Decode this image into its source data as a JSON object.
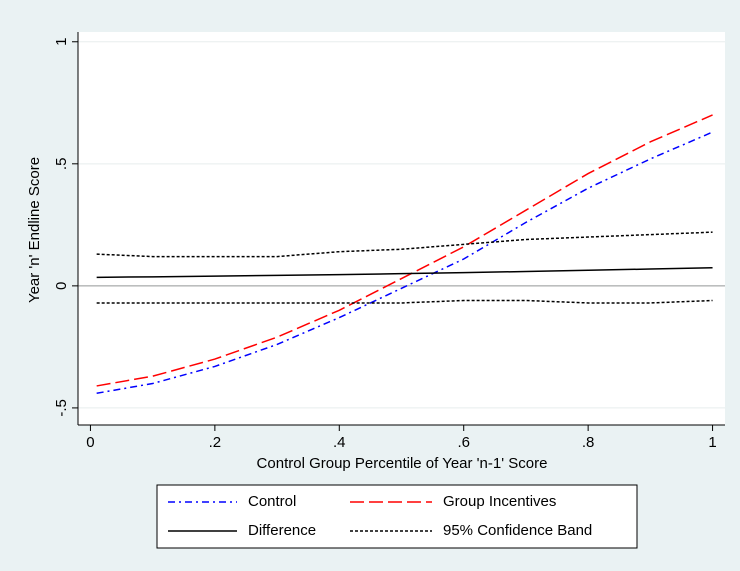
{
  "chart_data": {
    "type": "line",
    "x_label": "Control Group Percentile of Year 'n-1' Score",
    "y_label": "Year 'n' Endline Score",
    "x": [
      0.01,
      0.1,
      0.2,
      0.3,
      0.4,
      0.5,
      0.6,
      0.7,
      0.8,
      0.9,
      1.0
    ],
    "series": [
      {
        "name": "Control",
        "color": "#0000ff",
        "values": [
          -0.44,
          -0.4,
          -0.33,
          -0.24,
          -0.13,
          -0.01,
          0.11,
          0.26,
          0.4,
          0.52,
          0.63
        ]
      },
      {
        "name": "Group Incentives",
        "color": "#ff0000",
        "values": [
          -0.41,
          -0.37,
          -0.3,
          -0.21,
          -0.1,
          0.03,
          0.16,
          0.31,
          0.46,
          0.59,
          0.7
        ]
      },
      {
        "name": "Difference",
        "color": "#000000",
        "values": [
          0.035,
          0.037,
          0.04,
          0.043,
          0.046,
          0.05,
          0.054,
          0.059,
          0.064,
          0.069,
          0.074
        ]
      },
      {
        "name": "95% Confidence Band",
        "color": "#000000",
        "upper": [
          0.13,
          0.12,
          0.12,
          0.12,
          0.14,
          0.15,
          0.17,
          0.19,
          0.2,
          0.21,
          0.22
        ],
        "lower": [
          -0.07,
          -0.07,
          -0.07,
          -0.07,
          -0.07,
          -0.07,
          -0.06,
          -0.06,
          -0.07,
          -0.07,
          -0.06
        ]
      }
    ],
    "xlim": [
      -0.02,
      1.02
    ],
    "ylim": [
      -0.57,
      1.04
    ],
    "xticks": [
      0,
      {
        "value": 0.2,
        "label": ".2"
      },
      {
        "value": 0.4,
        "label": ".4"
      },
      {
        "value": 0.6,
        "label": ".6"
      },
      {
        "value": 0.8,
        "label": ".8"
      },
      1
    ],
    "yticks": [
      {
        "value": -0.5,
        "label": "-.5"
      },
      0,
      {
        "value": 0.5,
        "label": ".5"
      },
      1
    ],
    "grid": true,
    "reference_line": 0
  }
}
